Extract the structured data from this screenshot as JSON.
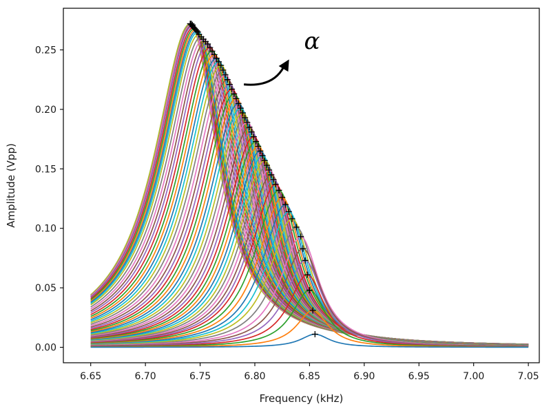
{
  "chart_data": {
    "type": "line",
    "title": "",
    "xlabel": "Frequency (kHz)",
    "ylabel": "Amplitude (Vpp)",
    "xlim": [
      6.625,
      7.06
    ],
    "ylim": [
      -0.013,
      0.285
    ],
    "xticks": [
      6.65,
      6.7,
      6.75,
      6.8,
      6.85,
      6.9,
      6.95,
      7.0,
      7.05
    ],
    "yticks": [
      0.0,
      0.05,
      0.1,
      0.15,
      0.2,
      0.25
    ],
    "xtick_labels": [
      "6.65",
      "6.70",
      "6.75",
      "6.80",
      "6.85",
      "6.90",
      "6.95",
      "7.00",
      "7.05"
    ],
    "ytick_labels": [
      "0.00",
      "0.05",
      "0.10",
      "0.15",
      "0.20",
      "0.25"
    ],
    "grid": false,
    "legend": "none",
    "x_range_of_curves": [
      6.65,
      7.05
    ],
    "curve_count": 60,
    "peak_marker": "+",
    "peaks": [
      {
        "x": 6.855,
        "y": 0.011
      },
      {
        "x": 6.853,
        "y": 0.031
      },
      {
        "x": 6.85,
        "y": 0.048
      },
      {
        "x": 6.848,
        "y": 0.061
      },
      {
        "x": 6.846,
        "y": 0.073
      },
      {
        "x": 6.844,
        "y": 0.083
      },
      {
        "x": 6.842,
        "y": 0.093
      },
      {
        "x": 6.838,
        "y": 0.101
      },
      {
        "x": 6.834,
        "y": 0.108
      },
      {
        "x": 6.831,
        "y": 0.114
      },
      {
        "x": 6.828,
        "y": 0.12
      },
      {
        "x": 6.825,
        "y": 0.126
      },
      {
        "x": 6.822,
        "y": 0.132
      },
      {
        "x": 6.819,
        "y": 0.137
      },
      {
        "x": 6.817,
        "y": 0.141
      },
      {
        "x": 6.815,
        "y": 0.145
      },
      {
        "x": 6.813,
        "y": 0.149
      },
      {
        "x": 6.811,
        "y": 0.153
      },
      {
        "x": 6.809,
        "y": 0.157
      },
      {
        "x": 6.807,
        "y": 0.161
      },
      {
        "x": 6.805,
        "y": 0.165
      },
      {
        "x": 6.803,
        "y": 0.169
      },
      {
        "x": 6.801,
        "y": 0.173
      },
      {
        "x": 6.799,
        "y": 0.177
      },
      {
        "x": 6.797,
        "y": 0.181
      },
      {
        "x": 6.795,
        "y": 0.185
      },
      {
        "x": 6.793,
        "y": 0.189
      },
      {
        "x": 6.791,
        "y": 0.193
      },
      {
        "x": 6.789,
        "y": 0.197
      },
      {
        "x": 6.787,
        "y": 0.201
      },
      {
        "x": 6.785,
        "y": 0.205
      },
      {
        "x": 6.783,
        "y": 0.209
      },
      {
        "x": 6.781,
        "y": 0.213
      },
      {
        "x": 6.779,
        "y": 0.217
      },
      {
        "x": 6.777,
        "y": 0.221
      },
      {
        "x": 6.775,
        "y": 0.225
      },
      {
        "x": 6.773,
        "y": 0.229
      },
      {
        "x": 6.771,
        "y": 0.233
      },
      {
        "x": 6.769,
        "y": 0.237
      },
      {
        "x": 6.767,
        "y": 0.24
      },
      {
        "x": 6.765,
        "y": 0.243
      },
      {
        "x": 6.763,
        "y": 0.246
      },
      {
        "x": 6.761,
        "y": 0.249
      },
      {
        "x": 6.759,
        "y": 0.252
      },
      {
        "x": 6.757,
        "y": 0.255
      },
      {
        "x": 6.755,
        "y": 0.257
      },
      {
        "x": 6.753,
        "y": 0.259
      },
      {
        "x": 6.751,
        "y": 0.261
      },
      {
        "x": 6.749,
        "y": 0.263
      },
      {
        "x": 6.748,
        "y": 0.265
      },
      {
        "x": 6.747,
        "y": 0.266
      },
      {
        "x": 6.746,
        "y": 0.267
      },
      {
        "x": 6.745,
        "y": 0.268
      },
      {
        "x": 6.744,
        "y": 0.269
      },
      {
        "x": 6.743,
        "y": 0.27
      },
      {
        "x": 6.743,
        "y": 0.271
      },
      {
        "x": 6.742,
        "y": 0.271
      },
      {
        "x": 6.742,
        "y": 0.272
      },
      {
        "x": 6.741,
        "y": 0.272
      },
      {
        "x": 6.741,
        "y": 0.272
      }
    ],
    "series_colors": [
      "#1f77b4",
      "#ff7f0e",
      "#2ca02c",
      "#d62728",
      "#9467bd",
      "#8c564b",
      "#e377c2",
      "#7f7f7f",
      "#bcbd22",
      "#17becf"
    ],
    "annotation": {
      "text": "α",
      "arrow_from": {
        "x": 6.79,
        "y": 0.221
      },
      "arrow_to": {
        "x": 6.83,
        "y": 0.24
      },
      "label_at": {
        "x": 6.845,
        "y": 0.251
      }
    }
  }
}
